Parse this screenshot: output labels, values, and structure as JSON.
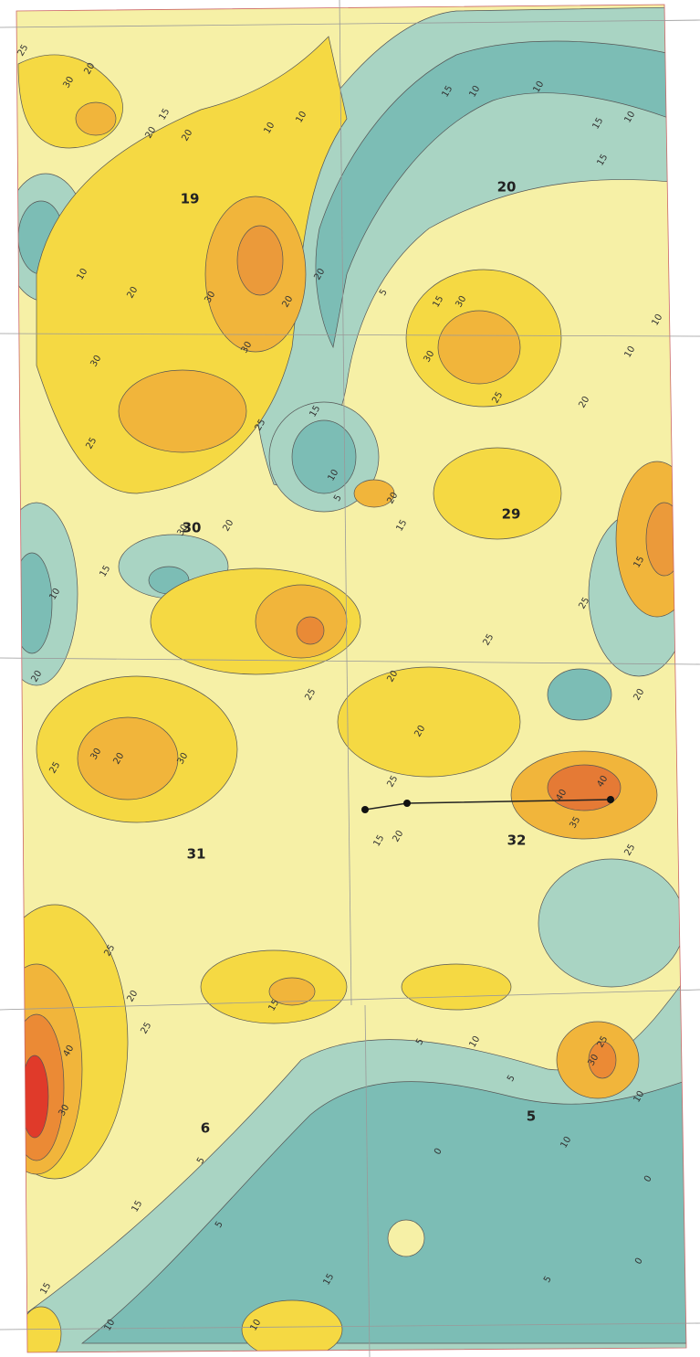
{
  "map": {
    "sections": [
      19,
      20,
      30,
      29,
      31,
      32,
      6,
      5
    ],
    "contour_labels": [
      20,
      25,
      20,
      30,
      15,
      20,
      10,
      10,
      15,
      10,
      10,
      15,
      10,
      15,
      10,
      20,
      30,
      30,
      20,
      5,
      15,
      30,
      30,
      25,
      30,
      25,
      25,
      20,
      15,
      5,
      10,
      20,
      15,
      20,
      10,
      10,
      20,
      15,
      10,
      30,
      20,
      25,
      30,
      30,
      25,
      20,
      25,
      25,
      15,
      20,
      20,
      25,
      40,
      40,
      35,
      25,
      15,
      20,
      20,
      25,
      20,
      25,
      5,
      15,
      5,
      10,
      30,
      25,
      10,
      10,
      40,
      30,
      0,
      5,
      15,
      5,
      15,
      10,
      10,
      15,
      5,
      0,
      0
    ]
  }
}
